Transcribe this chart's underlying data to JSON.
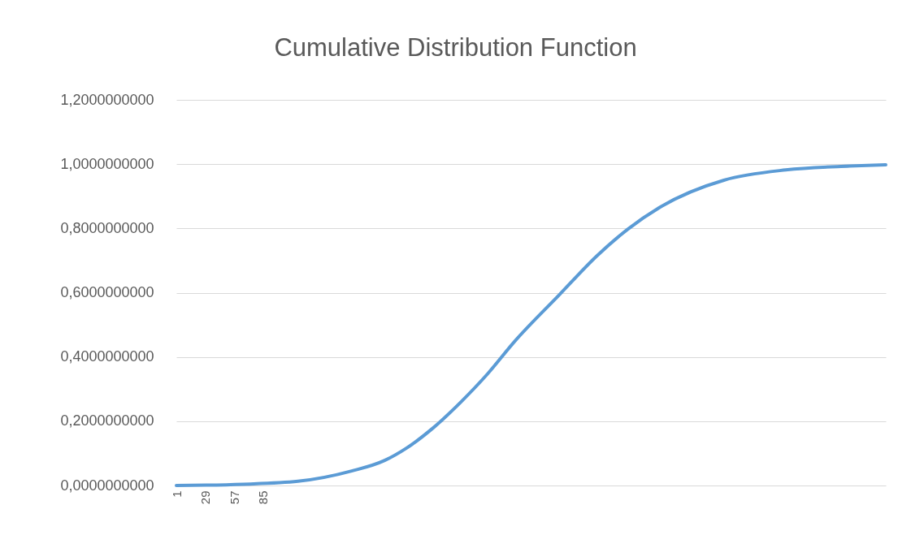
{
  "chart_data": {
    "type": "line",
    "title": "Cumulative Distribution Function",
    "x": [
      1,
      30,
      66,
      119,
      171,
      203,
      224,
      250,
      277,
      303,
      329,
      372,
      409,
      439,
      470,
      532,
      592,
      654,
      689
    ],
    "series": [
      {
        "color": "#5b9bd5",
        "values": [
          0,
          0.001,
          0.004,
          0.013,
          0.045,
          0.078,
          0.116,
          0.179,
          0.26,
          0.348,
          0.448,
          0.592,
          0.715,
          0.798,
          0.866,
          0.95,
          0.982,
          0.994,
          0.998
        ]
      }
    ],
    "xlim": [
      1,
      689
    ],
    "xticks": [
      1,
      29,
      57,
      85
    ],
    "ylim": [
      0,
      1.2
    ],
    "yticks": [
      {
        "value": 0,
        "label": "0,0000000000"
      },
      {
        "value": 0.2,
        "label": "0,2000000000"
      },
      {
        "value": 0.4,
        "label": "0,4000000000"
      },
      {
        "value": 0.6,
        "label": "0,6000000000"
      },
      {
        "value": 0.8,
        "label": "0,8000000000"
      },
      {
        "value": 1,
        "label": "1,0000000000"
      },
      {
        "value": 1.2,
        "label": "1,2000000000"
      }
    ],
    "grid": "y",
    "marker": "none",
    "line_style": "solid"
  }
}
